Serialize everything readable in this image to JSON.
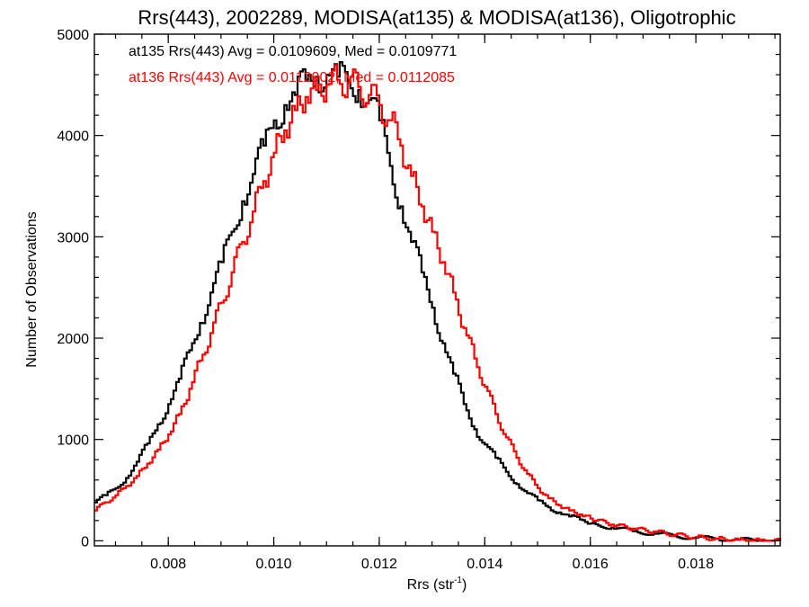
{
  "chart_data": {
    "type": "line",
    "title": "Rrs(443), 2002289, MODISA(at135) & MODISA(at136), Oligotrophic",
    "xlabel": "Rrs (str",
    "xlabel_sup": "-1",
    "xlabel_close": ")",
    "ylabel": "Number of Observations",
    "xlim": [
      0.0066,
      0.0196
    ],
    "ylim": [
      -50,
      5000
    ],
    "xticks": [
      0.008,
      0.01,
      0.012,
      0.014,
      0.016,
      0.018
    ],
    "xtick_labels": [
      "0.008",
      "0.010",
      "0.012",
      "0.014",
      "0.016",
      "0.018"
    ],
    "yticks": [
      0,
      1000,
      2000,
      3000,
      4000,
      5000
    ],
    "ytick_labels": [
      "0",
      "1000",
      "2000",
      "3000",
      "4000",
      "5000"
    ],
    "grid": false,
    "legend": "top-left",
    "bin_width": 5e-05,
    "series": [
      {
        "name": "at135",
        "color": "#000000",
        "annotation": "at135 Rrs(443) Avg = 0.0109609, Med = 0.0109771",
        "x": [
          0.0066,
          0.0068,
          0.007,
          0.0072,
          0.0074,
          0.0076,
          0.0078,
          0.008,
          0.0082,
          0.0084,
          0.0086,
          0.0088,
          0.009,
          0.0092,
          0.0094,
          0.0096,
          0.0098,
          0.01,
          0.0102,
          0.0104,
          0.0106,
          0.0108,
          0.011,
          0.0112,
          0.0114,
          0.0116,
          0.0118,
          0.012,
          0.0122,
          0.0124,
          0.0126,
          0.0128,
          0.013,
          0.0132,
          0.0134,
          0.0136,
          0.0138,
          0.014,
          0.0142,
          0.0144,
          0.0146,
          0.0148,
          0.015,
          0.0152,
          0.0154,
          0.0156,
          0.0158,
          0.016,
          0.0164,
          0.0168,
          0.0172,
          0.0176,
          0.018,
          0.0184,
          0.0188,
          0.0192,
          0.0196
        ],
        "y": [
          380,
          450,
          520,
          620,
          780,
          960,
          1150,
          1350,
          1600,
          1880,
          2150,
          2450,
          2750,
          3050,
          3350,
          3620,
          3900,
          4150,
          4300,
          4400,
          4550,
          4580,
          4600,
          4580,
          4520,
          4450,
          4350,
          4150,
          3700,
          3300,
          2950,
          2650,
          2300,
          1950,
          1650,
          1350,
          1100,
          950,
          820,
          680,
          560,
          470,
          400,
          330,
          280,
          240,
          210,
          170,
          130,
          95,
          70,
          45,
          30,
          20,
          10,
          5,
          0
        ]
      },
      {
        "name": "at136",
        "color": "#ff0000",
        "annotation": "at136 Rrs(443) Avg = 0.0112002, Med = 0.0112085",
        "x": [
          0.0066,
          0.0068,
          0.007,
          0.0072,
          0.0074,
          0.0076,
          0.0078,
          0.008,
          0.0082,
          0.0084,
          0.0086,
          0.0088,
          0.009,
          0.0092,
          0.0094,
          0.0096,
          0.0098,
          0.01,
          0.0102,
          0.0104,
          0.0106,
          0.0108,
          0.011,
          0.0112,
          0.0114,
          0.0116,
          0.0118,
          0.012,
          0.0122,
          0.0124,
          0.0126,
          0.0128,
          0.013,
          0.0132,
          0.0134,
          0.0136,
          0.0138,
          0.014,
          0.0142,
          0.0144,
          0.0146,
          0.0148,
          0.015,
          0.0152,
          0.0154,
          0.0156,
          0.0158,
          0.016,
          0.0164,
          0.0168,
          0.0172,
          0.0176,
          0.018,
          0.0184,
          0.0188,
          0.0192,
          0.0196
        ],
        "y": [
          300,
          380,
          450,
          540,
          640,
          760,
          900,
          1050,
          1250,
          1500,
          1780,
          2050,
          2350,
          2650,
          2950,
          3250,
          3550,
          3830,
          4050,
          4250,
          4380,
          4450,
          4500,
          4550,
          4520,
          4480,
          4400,
          4300,
          4150,
          3900,
          3600,
          3300,
          3050,
          2750,
          2450,
          2100,
          1800,
          1520,
          1250,
          1020,
          820,
          660,
          520,
          420,
          350,
          300,
          260,
          220,
          160,
          120,
          90,
          60,
          35,
          20,
          10,
          5,
          0
        ]
      }
    ]
  }
}
